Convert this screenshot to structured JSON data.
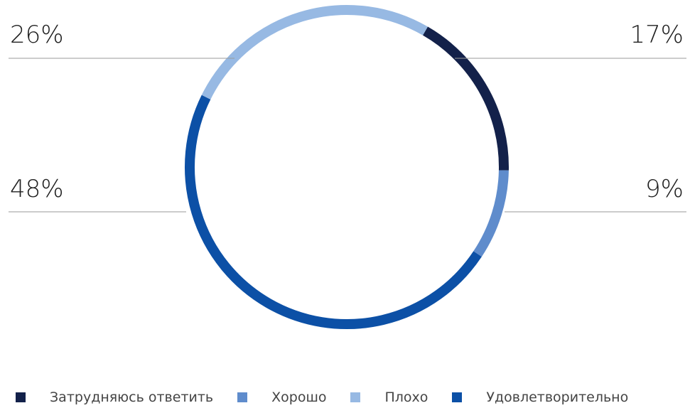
{
  "chart_data": {
    "type": "pie",
    "style": "donut",
    "title": "",
    "series": [
      {
        "name": "Затрудняюсь ответить",
        "value": 17,
        "label": "17%",
        "color": "#13214a"
      },
      {
        "name": "Хорошо",
        "value": 9,
        "label": "9%",
        "color": "#5f8ccc"
      },
      {
        "name": "Удовлетворительно",
        "value": 48,
        "label": "48%",
        "color": "#0c50a6"
      },
      {
        "name": "Плохо",
        "value": 26,
        "label": "26%",
        "color": "#97b9e3"
      }
    ],
    "legend": {
      "placement": "bottom",
      "items": [
        {
          "label": "Затрудняюсь ответить",
          "color": "#13214a"
        },
        {
          "label": "Хорошо",
          "color": "#5f8ccc"
        },
        {
          "label": "Плохо",
          "color": "#97b9e3"
        },
        {
          "label": "Удовлетворительно",
          "color": "#0c50a6"
        }
      ]
    }
  }
}
